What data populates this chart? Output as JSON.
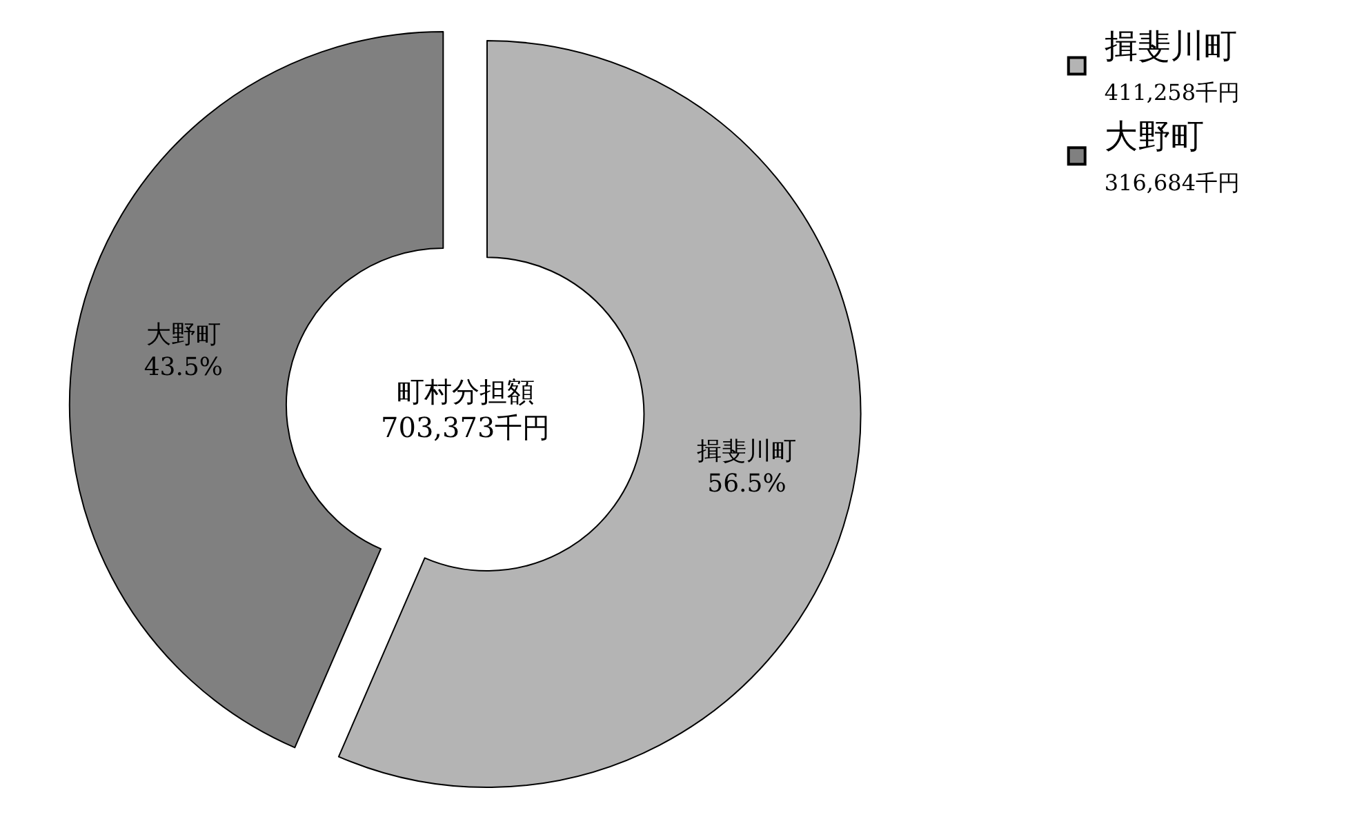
{
  "chart_data": {
    "type": "donut",
    "categories": [
      "揖斐川町",
      "大野町"
    ],
    "values": [
      56.5,
      43.5
    ],
    "value_labels": [
      "56.5%",
      "43.5%"
    ],
    "colors": [
      "#b4b4b4",
      "#808080"
    ],
    "legend": "top right",
    "annotations": [
      "町村分担額\n703,373千円",
      "411,258千円",
      "316,684千円"
    ]
  }
}
